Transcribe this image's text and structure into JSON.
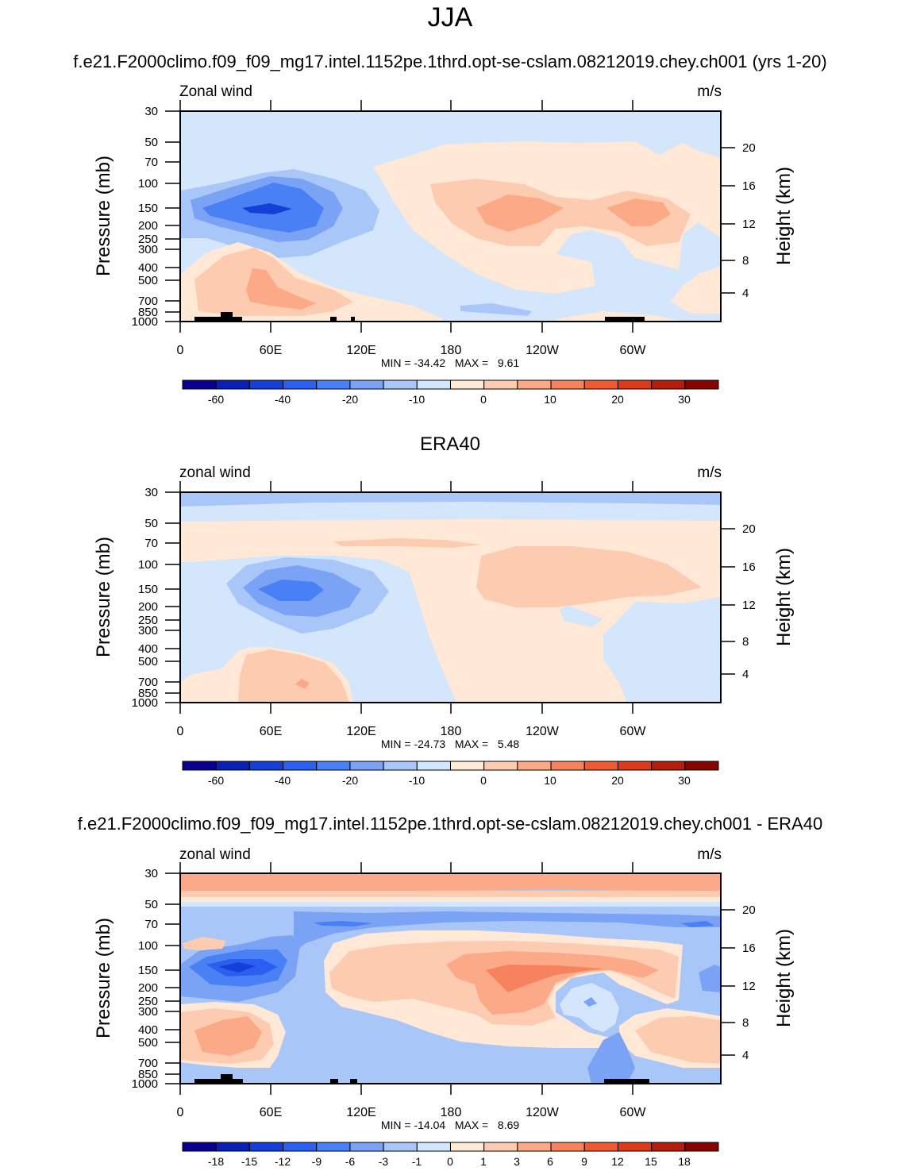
{
  "page": {
    "title": "JJA"
  },
  "colors": {
    "cbar": [
      "#08008c",
      "#0a1fb5",
      "#1540d8",
      "#2a5ff0",
      "#4a80f5",
      "#7aa3f5",
      "#a8c6f7",
      "#d4e6fb",
      "#ffe8d5",
      "#fdcbb0",
      "#fca987",
      "#f7825e",
      "#f05a32",
      "#db3a1a",
      "#b51c0a",
      "#870300"
    ],
    "neg1": "#d4e6fb",
    "neg2": "#a8c6f7",
    "neg3": "#7aa3f5",
    "neg4": "#4a80f5",
    "neg5": "#2a5ff0",
    "neg6": "#1540d8",
    "pos1": "#ffe8d5",
    "pos2": "#fdcbb0",
    "pos3": "#fca987",
    "pos4": "#f7825e"
  },
  "chart_data": [
    {
      "type": "heatmap",
      "title": "f.e21.F2000climo.f09_f09_mg17.intel.1152pe.1thrd.opt-se-cslam.08212019.chey.ch001 (yrs 1-20)",
      "left_label": "Zonal wind",
      "right_label": "m/s",
      "ylabel": "Pressure (mb)",
      "y2label": "Height (km)",
      "x_ticks": [
        "0",
        "60E",
        "120E",
        "180",
        "120W",
        "60W"
      ],
      "y_ticks": [
        "30",
        "50",
        "70",
        "100",
        "150",
        "200",
        "250",
        "300",
        "400",
        "500",
        "700",
        "850",
        "1000"
      ],
      "y2_ticks": [
        "20",
        "16",
        "12",
        "8",
        "4"
      ],
      "stats": "MIN = -34.42   MAX =   9.61",
      "colorbar_labels": [
        "-60",
        "-40",
        "-20",
        "-10",
        "0",
        "10",
        "20",
        "30"
      ]
    },
    {
      "type": "heatmap",
      "title": "ERA40",
      "left_label": "zonal wind",
      "right_label": "m/s",
      "ylabel": "Pressure (mb)",
      "y2label": "Height (km)",
      "x_ticks": [
        "0",
        "60E",
        "120E",
        "180",
        "120W",
        "60W"
      ],
      "y_ticks": [
        "30",
        "50",
        "70",
        "100",
        "150",
        "200",
        "250",
        "300",
        "400",
        "500",
        "700",
        "850",
        "1000"
      ],
      "y2_ticks": [
        "20",
        "16",
        "12",
        "8",
        "4"
      ],
      "stats": "MIN = -24.73   MAX =   5.48",
      "colorbar_labels": [
        "-60",
        "-40",
        "-20",
        "-10",
        "0",
        "10",
        "20",
        "30"
      ]
    },
    {
      "type": "heatmap",
      "title": "f.e21.F2000climo.f09_f09_mg17.intel.1152pe.1thrd.opt-se-cslam.08212019.chey.ch001 - ERA40",
      "left_label": "zonal wind",
      "right_label": "m/s",
      "ylabel": "Pressure (mb)",
      "y2label": "Height (km)",
      "x_ticks": [
        "0",
        "60E",
        "120E",
        "180",
        "120W",
        "60W"
      ],
      "y_ticks": [
        "30",
        "50",
        "70",
        "100",
        "150",
        "200",
        "250",
        "300",
        "400",
        "500",
        "700",
        "850",
        "1000"
      ],
      "y2_ticks": [
        "20",
        "16",
        "12",
        "8",
        "4"
      ],
      "stats": "MIN = -14.04   MAX =   8.69",
      "colorbar_labels": [
        "-18",
        "-15",
        "-12",
        "-9",
        "-6",
        "-3",
        "-1",
        "0",
        "1",
        "3",
        "6",
        "9",
        "12",
        "15",
        "18"
      ]
    }
  ]
}
